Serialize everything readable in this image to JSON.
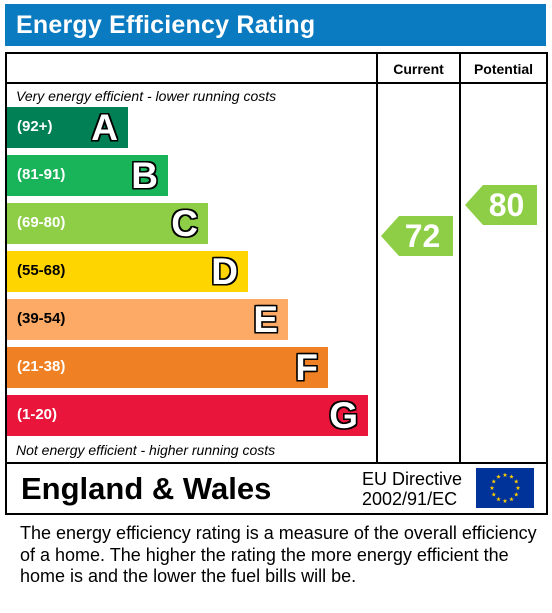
{
  "chart_data": {
    "type": "epc-rating",
    "title": "Energy Efficiency Rating",
    "columns": [
      "Current",
      "Potential"
    ],
    "top_note": "Very energy efficient - lower running costs",
    "bottom_note": "Not energy efficient - higher running costs",
    "bands": [
      {
        "range": "(92+)",
        "letter": "A",
        "color": "#008054",
        "min": 92,
        "max": 100
      },
      {
        "range": "(81-91)",
        "letter": "B",
        "color": "#19b459",
        "min": 81,
        "max": 91
      },
      {
        "range": "(69-80)",
        "letter": "C",
        "color": "#8dce46",
        "min": 69,
        "max": 80
      },
      {
        "range": "(55-68)",
        "letter": "D",
        "color": "#ffd500",
        "min": 55,
        "max": 68
      },
      {
        "range": "(39-54)",
        "letter": "E",
        "color": "#fcaa65",
        "min": 39,
        "max": 54
      },
      {
        "range": "(21-38)",
        "letter": "F",
        "color": "#ef8023",
        "min": 21,
        "max": 38
      },
      {
        "range": "(1-20)",
        "letter": "G",
        "color": "#e9153b",
        "min": 1,
        "max": 20
      }
    ],
    "current": {
      "value": 72,
      "label": "72",
      "color": "#8dce46"
    },
    "potential": {
      "value": 80,
      "label": "80",
      "color": "#8dce46"
    },
    "country": "England & Wales",
    "directive_line1": "EU Directive",
    "directive_line2": "2002/91/EC"
  },
  "caption": "The energy efficiency rating is a measure of the overall efficiency of a home.  The higher the rating the more energy efficient the home is and the lower the fuel bills will be."
}
